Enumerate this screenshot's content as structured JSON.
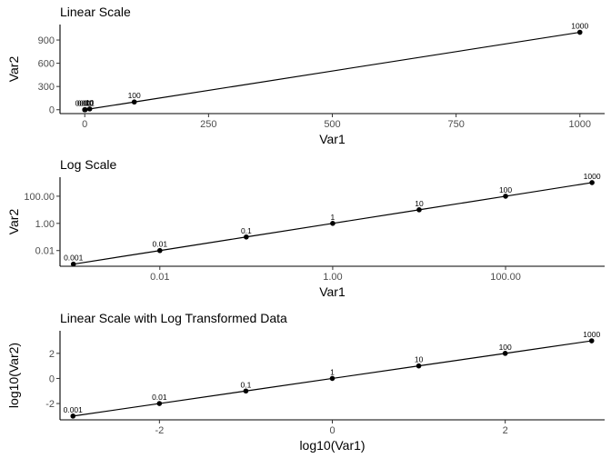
{
  "chart_data": [
    {
      "type": "line",
      "title": "Linear Scale",
      "xlabel": "Var1",
      "ylabel": "Var2",
      "x_scale": "linear",
      "y_scale": "linear",
      "x": [
        0.001,
        0.01,
        0.1,
        1,
        10,
        100,
        1000
      ],
      "y": [
        0.001,
        0.01,
        0.1,
        1,
        10,
        100,
        1000
      ],
      "point_labels": [
        "0.001",
        "0.01",
        "0.1",
        "1",
        "10",
        "100",
        "1000"
      ],
      "xlim": [
        -50,
        1050
      ],
      "ylim": [
        -50,
        1100
      ],
      "x_ticks": [
        0,
        250,
        500,
        750,
        1000
      ],
      "x_tick_labels": [
        "0",
        "250",
        "500",
        "750",
        "1000"
      ],
      "y_ticks": [
        0,
        300,
        600,
        900
      ],
      "y_tick_labels": [
        "0",
        "300",
        "600",
        "900"
      ],
      "grid": false,
      "points": true
    },
    {
      "type": "line",
      "title": "Log Scale",
      "xlabel": "Var1",
      "ylabel": "Var2",
      "x_scale": "log10",
      "y_scale": "log10",
      "x": [
        0.001,
        0.01,
        0.1,
        1,
        10,
        100,
        1000
      ],
      "y": [
        0.001,
        0.01,
        0.1,
        1,
        10,
        100,
        1000
      ],
      "point_labels": [
        "0.001",
        "0.01",
        "0.1",
        "1",
        "10",
        "100",
        "1000"
      ],
      "xlim": [
        0.0007,
        1400
      ],
      "ylim": [
        0.0007,
        2500
      ],
      "x_ticks": [
        0.01,
        1,
        100
      ],
      "x_tick_labels": [
        "0.01",
        "1.00",
        "100.00"
      ],
      "y_ticks": [
        0.01,
        1,
        100
      ],
      "y_tick_labels": [
        "0.01",
        "1.00",
        "100.00"
      ],
      "grid": false,
      "points": true
    },
    {
      "type": "line",
      "title": "Linear Scale with Log Transformed Data",
      "xlabel": "log10(Var1)",
      "ylabel": "log10(Var2)",
      "x_scale": "linear",
      "y_scale": "linear",
      "x": [
        -3,
        -2,
        -1,
        0,
        1,
        2,
        3
      ],
      "y": [
        -3,
        -2,
        -1,
        0,
        1,
        2,
        3
      ],
      "point_labels": [
        "0.001",
        "0.01",
        "0.1",
        "1",
        "10",
        "100",
        "1000"
      ],
      "xlim": [
        -3.15,
        3.15
      ],
      "ylim": [
        -3.3,
        3.8
      ],
      "x_ticks": [
        -2,
        0,
        2
      ],
      "x_tick_labels": [
        "-2",
        "0",
        "2"
      ],
      "y_ticks": [
        -2,
        0,
        2
      ],
      "y_tick_labels": [
        "-2",
        "0",
        "2"
      ],
      "grid": false,
      "points": true
    }
  ]
}
